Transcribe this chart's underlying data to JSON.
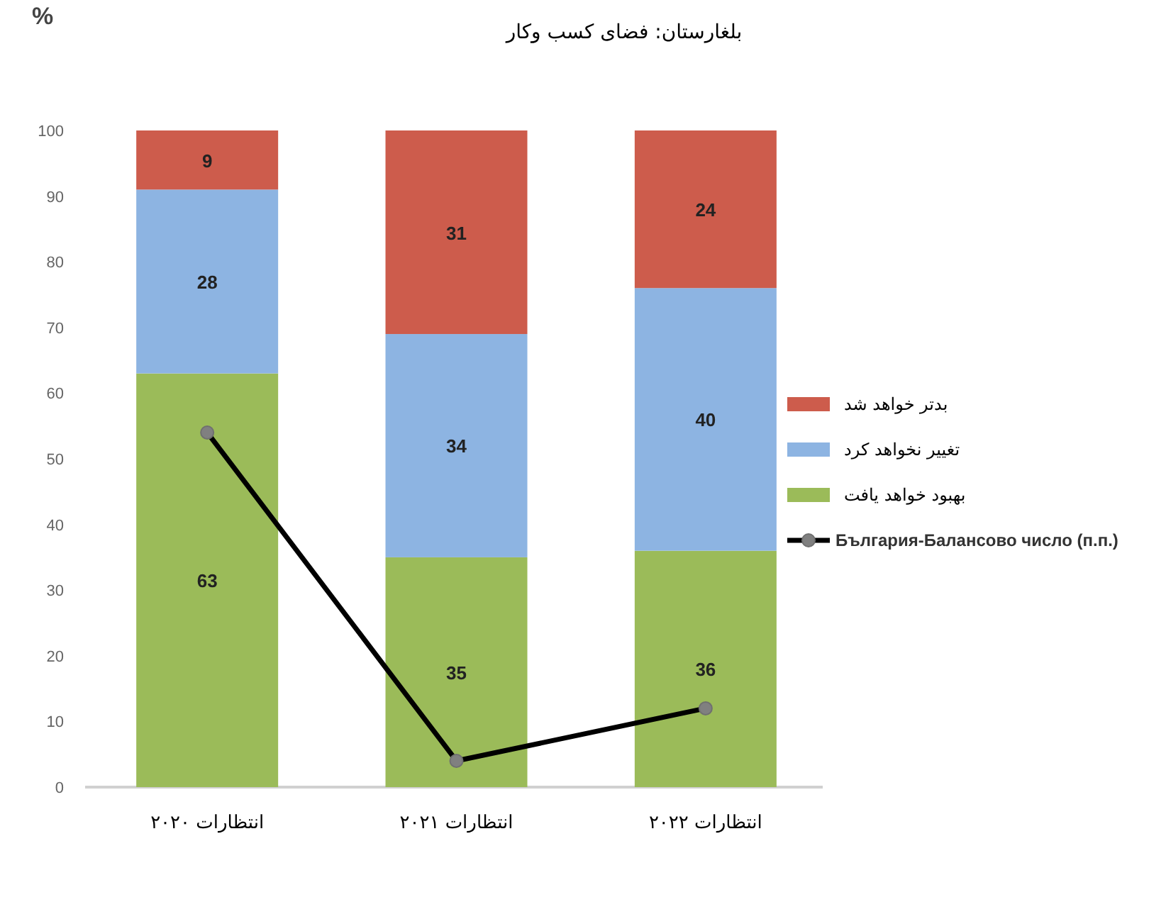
{
  "chart_data": {
    "type": "bar",
    "stacked": true,
    "title": "بلغارستان: فضای کسب وکار",
    "ylabel": "%",
    "categories": [
      "انتظارات ۲۰۲۰",
      "انتظارات ۲۰۲۱",
      "انتظارات ۲۰۲۲"
    ],
    "ylim": [
      0,
      100
    ],
    "yticks": [
      0,
      10,
      20,
      30,
      40,
      50,
      60,
      70,
      80,
      90,
      100
    ],
    "legend": "right",
    "series": [
      {
        "name": "بهبود خواهد یافت",
        "color": "#9bbb59",
        "values": [
          63,
          35,
          36
        ],
        "value_labels": [
          "63",
          "35",
          "36"
        ]
      },
      {
        "name": "تغییر نخواهد کرد",
        "color": "#8db4e2",
        "values": [
          28,
          34,
          40
        ],
        "value_labels": [
          "28",
          "34",
          "40"
        ]
      },
      {
        "name": "بدتر خواهد شد",
        "color": "#cd5c4c",
        "values": [
          9,
          31,
          24
        ],
        "value_labels": [
          "9",
          "31",
          "24"
        ]
      },
      {
        "name": "България-Балансово число (п.п.)",
        "type": "line",
        "color": "#000000",
        "marker": "circle",
        "values": [
          54,
          4,
          12
        ]
      }
    ]
  }
}
